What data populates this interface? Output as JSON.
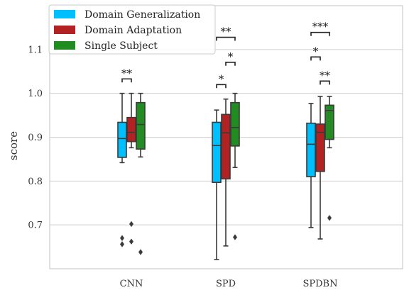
{
  "chart_data": {
    "type": "boxplot",
    "title": "",
    "xlabel": "",
    "ylabel": "score",
    "ylim": [
      0.6,
      1.2
    ],
    "yticks": [
      "0.7",
      "0.8",
      "0.9",
      "1.0",
      "1.1"
    ],
    "ytick_values": [
      0.7,
      0.8,
      0.9,
      1.0,
      1.1
    ],
    "grid": "horizontal",
    "legend_placement": "top-left",
    "categories": [
      "CNN",
      "SPD",
      "SPDBN"
    ],
    "series": [
      {
        "name": "Domain Generalization",
        "color": "#00bfff",
        "boxes": [
          {
            "min": 0.842,
            "q1": 0.854,
            "median": 0.897,
            "q3": 0.934,
            "max": 1.0,
            "outliers": [
              0.67,
              0.656
            ]
          },
          {
            "min": 0.621,
            "q1": 0.797,
            "median": 0.881,
            "q3": 0.934,
            "max": 0.962,
            "outliers": []
          },
          {
            "min": 0.694,
            "q1": 0.81,
            "median": 0.884,
            "q3": 0.932,
            "max": 0.977,
            "outliers": []
          }
        ]
      },
      {
        "name": "Domain Adaptation",
        "color": "#b22222",
        "boxes": [
          {
            "min": 0.876,
            "q1": 0.89,
            "median": 0.911,
            "q3": 0.945,
            "max": 1.0,
            "outliers": [
              0.702,
              0.662
            ]
          },
          {
            "min": 0.652,
            "q1": 0.805,
            "median": 0.91,
            "q3": 0.952,
            "max": 0.987,
            "outliers": []
          },
          {
            "min": 0.668,
            "q1": 0.822,
            "median": 0.911,
            "q3": 0.93,
            "max": 0.993,
            "outliers": []
          }
        ]
      },
      {
        "name": "Single Subject",
        "color": "#228b22",
        "boxes": [
          {
            "min": 0.855,
            "q1": 0.873,
            "median": 0.929,
            "q3": 0.979,
            "max": 1.0,
            "outliers": [
              0.638
            ]
          },
          {
            "min": 0.831,
            "q1": 0.88,
            "median": 0.922,
            "q3": 0.979,
            "max": 1.0,
            "outliers": [
              0.672
            ]
          },
          {
            "min": 0.876,
            "q1": 0.895,
            "median": 0.961,
            "q3": 0.973,
            "max": 0.993,
            "outliers": [
              0.716
            ]
          }
        ]
      }
    ],
    "annotations": [
      {
        "category": 0,
        "from": 0,
        "to": 1,
        "y": 1.033,
        "label": "**"
      },
      {
        "category": 1,
        "from": 0,
        "to": 1,
        "y": 1.02,
        "label": "*"
      },
      {
        "category": 1,
        "from": 1,
        "to": 2,
        "y": 1.071,
        "label": "*"
      },
      {
        "category": 1,
        "from": 0,
        "to": 2,
        "y": 1.128,
        "label": "**"
      },
      {
        "category": 2,
        "from": 0,
        "to": 1,
        "y": 1.083,
        "label": "*"
      },
      {
        "category": 2,
        "from": 1,
        "to": 2,
        "y": 1.028,
        "label": "**"
      },
      {
        "category": 2,
        "from": 0,
        "to": 2,
        "y": 1.139,
        "label": "***"
      }
    ]
  }
}
